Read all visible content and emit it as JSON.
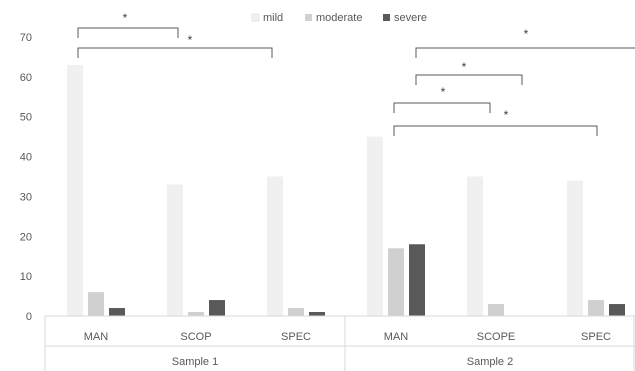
{
  "chart_data": {
    "type": "bar",
    "yticks": [
      0,
      10,
      20,
      30,
      40,
      50,
      60,
      70
    ],
    "ylim": [
      0,
      70
    ],
    "legend_position": "top-center",
    "grid": false,
    "groups": [
      {
        "label": "Sample 1",
        "categories": [
          "MAN",
          "SCOP",
          "SPEC"
        ]
      },
      {
        "label": "Sample 2",
        "categories": [
          "MAN",
          "SCOPE",
          "SPEC"
        ]
      }
    ],
    "series": [
      {
        "name": "mild",
        "color": "#f0f0f0",
        "values": [
          63,
          33,
          35,
          45,
          35,
          34
        ]
      },
      {
        "name": "moderate",
        "color": "#d0d0d0",
        "values": [
          6,
          1,
          2,
          17,
          3,
          4
        ]
      },
      {
        "name": "severe",
        "color": "#595959",
        "values": [
          2,
          4,
          1,
          18,
          0,
          3
        ]
      }
    ],
    "significance": [
      {
        "from": 0,
        "to": 1,
        "label": "*"
      },
      {
        "from": 0,
        "to": 2,
        "label": "*"
      },
      {
        "from": 3,
        "to": 99,
        "label": "*"
      },
      {
        "from": 3,
        "to": 4,
        "label": "*"
      },
      {
        "from": 3,
        "to": 4,
        "label": "*"
      },
      {
        "from": 3,
        "to": 5,
        "label": "*"
      }
    ]
  }
}
